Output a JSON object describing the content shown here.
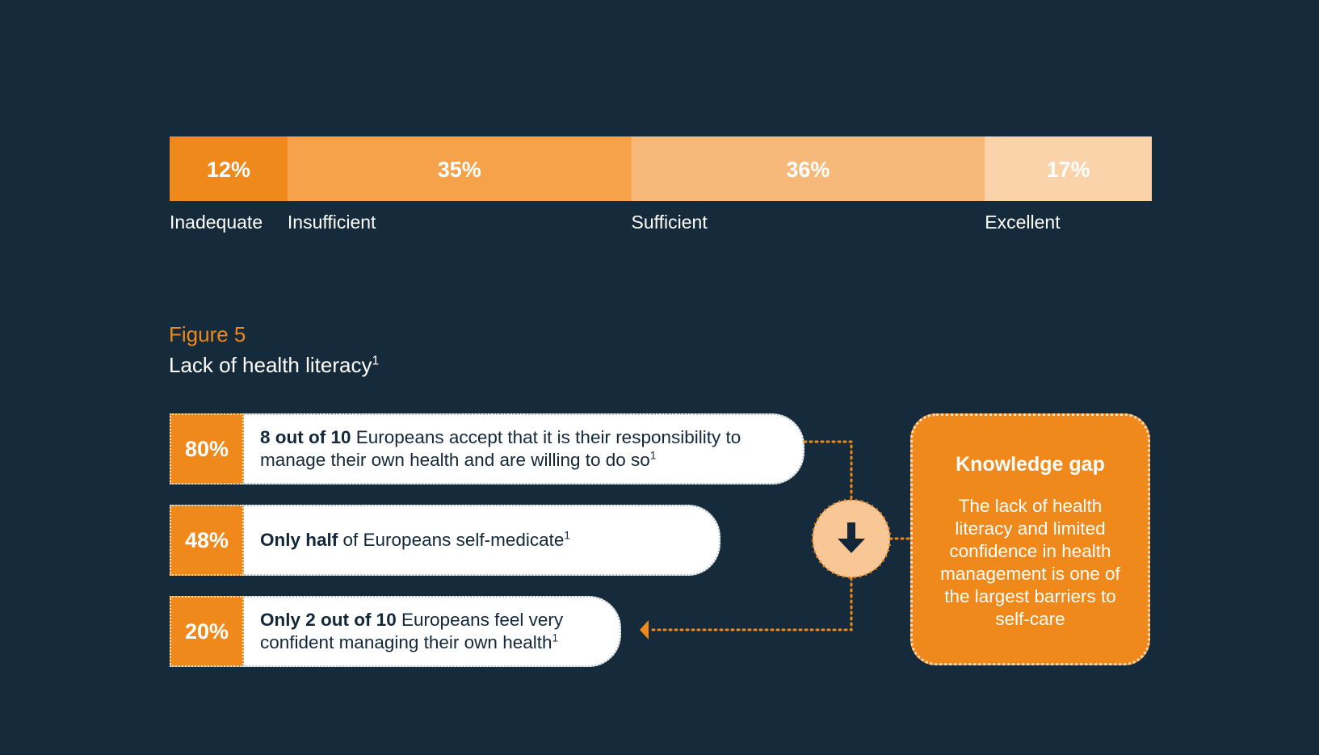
{
  "chart_data": {
    "type": "bar",
    "orientation": "horizontal-stacked",
    "unit": "%",
    "categories": [
      "Inadequate",
      "Insufficient",
      "Sufficient",
      "Excellent"
    ],
    "values": [
      12,
      35,
      36,
      17
    ],
    "value_labels": [
      "12%",
      "35%",
      "36%",
      "17%"
    ],
    "colors": [
      "#f0891b",
      "#f5a24a",
      "#f6b97a",
      "#fbd3aa"
    ],
    "grid": false,
    "title": ""
  },
  "figure": {
    "label": "Figure 5",
    "title": "Lack of health literacy",
    "title_sup": "1"
  },
  "stats": [
    {
      "percent": "80%",
      "bold": "8 out of 10",
      "text_line1": " Europeans accept that it is their responsibility to",
      "text_line2": "manage their own health and are willing to do so",
      "sup": "1"
    },
    {
      "percent": "48%",
      "bold": "Only half",
      "text_line1": " of Europeans self-medicate",
      "sup": "1"
    },
    {
      "percent": "20%",
      "bold": "Only 2 out of 10",
      "text_line1": " Europeans feel very",
      "text_line2": "confident managing their own health",
      "sup": "1"
    }
  ],
  "knowledge_gap": {
    "title": "Knowledge gap",
    "body": "The lack of health literacy and limited confidence in health management is one of the largest barriers to self-care"
  },
  "colors": {
    "background": "#152a3a",
    "accent": "#f0891b",
    "circle": "#f9c796",
    "arrow": "#13273a"
  },
  "icons": {
    "arrow_down": "arrow-down-icon"
  }
}
